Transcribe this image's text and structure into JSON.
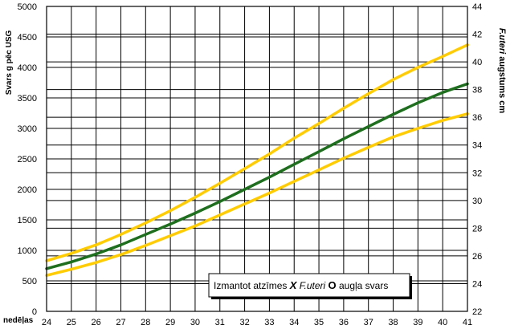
{
  "chart_data": {
    "type": "line",
    "x": [
      24,
      25,
      26,
      27,
      28,
      29,
      30,
      31,
      32,
      33,
      34,
      35,
      36,
      37,
      38,
      39,
      40,
      41
    ],
    "xlabel": "nedēļas",
    "xlim": [
      24,
      41
    ],
    "ylabel": "Svars g pēc USG",
    "ylim": [
      0,
      5000
    ],
    "yticks": [
      0,
      500,
      1000,
      1500,
      2000,
      2500,
      3000,
      3500,
      4000,
      4500,
      5000
    ],
    "y2label_italic": "F.uteri",
    "y2label_rest": " augstums cm",
    "y2lim": [
      22,
      44
    ],
    "y2ticks": [
      22,
      24,
      26,
      28,
      30,
      32,
      34,
      36,
      38,
      40,
      42,
      44
    ],
    "grid": true,
    "series": [
      {
        "color": "#ffcc00",
        "values": [
          830,
          950,
          1090,
          1260,
          1450,
          1650,
          1870,
          2100,
          2340,
          2580,
          2840,
          3080,
          3330,
          3570,
          3800,
          4000,
          4180,
          4370
        ]
      },
      {
        "color": "#1e6e1e",
        "values": [
          700,
          810,
          940,
          1090,
          1260,
          1430,
          1610,
          1800,
          2000,
          2200,
          2410,
          2620,
          2830,
          3030,
          3230,
          3420,
          3590,
          3730
        ]
      },
      {
        "color": "#ffcc00",
        "values": [
          590,
          690,
          800,
          930,
          1080,
          1240,
          1400,
          1580,
          1760,
          1940,
          2130,
          2320,
          2510,
          2690,
          2860,
          3000,
          3130,
          3240
        ]
      }
    ],
    "legend": {
      "part1": "Izmantot atzīmes ",
      "mark_x": "X",
      "futeri": "F.uteri",
      "mark_o": "O",
      "part2": "augļa svars"
    }
  }
}
